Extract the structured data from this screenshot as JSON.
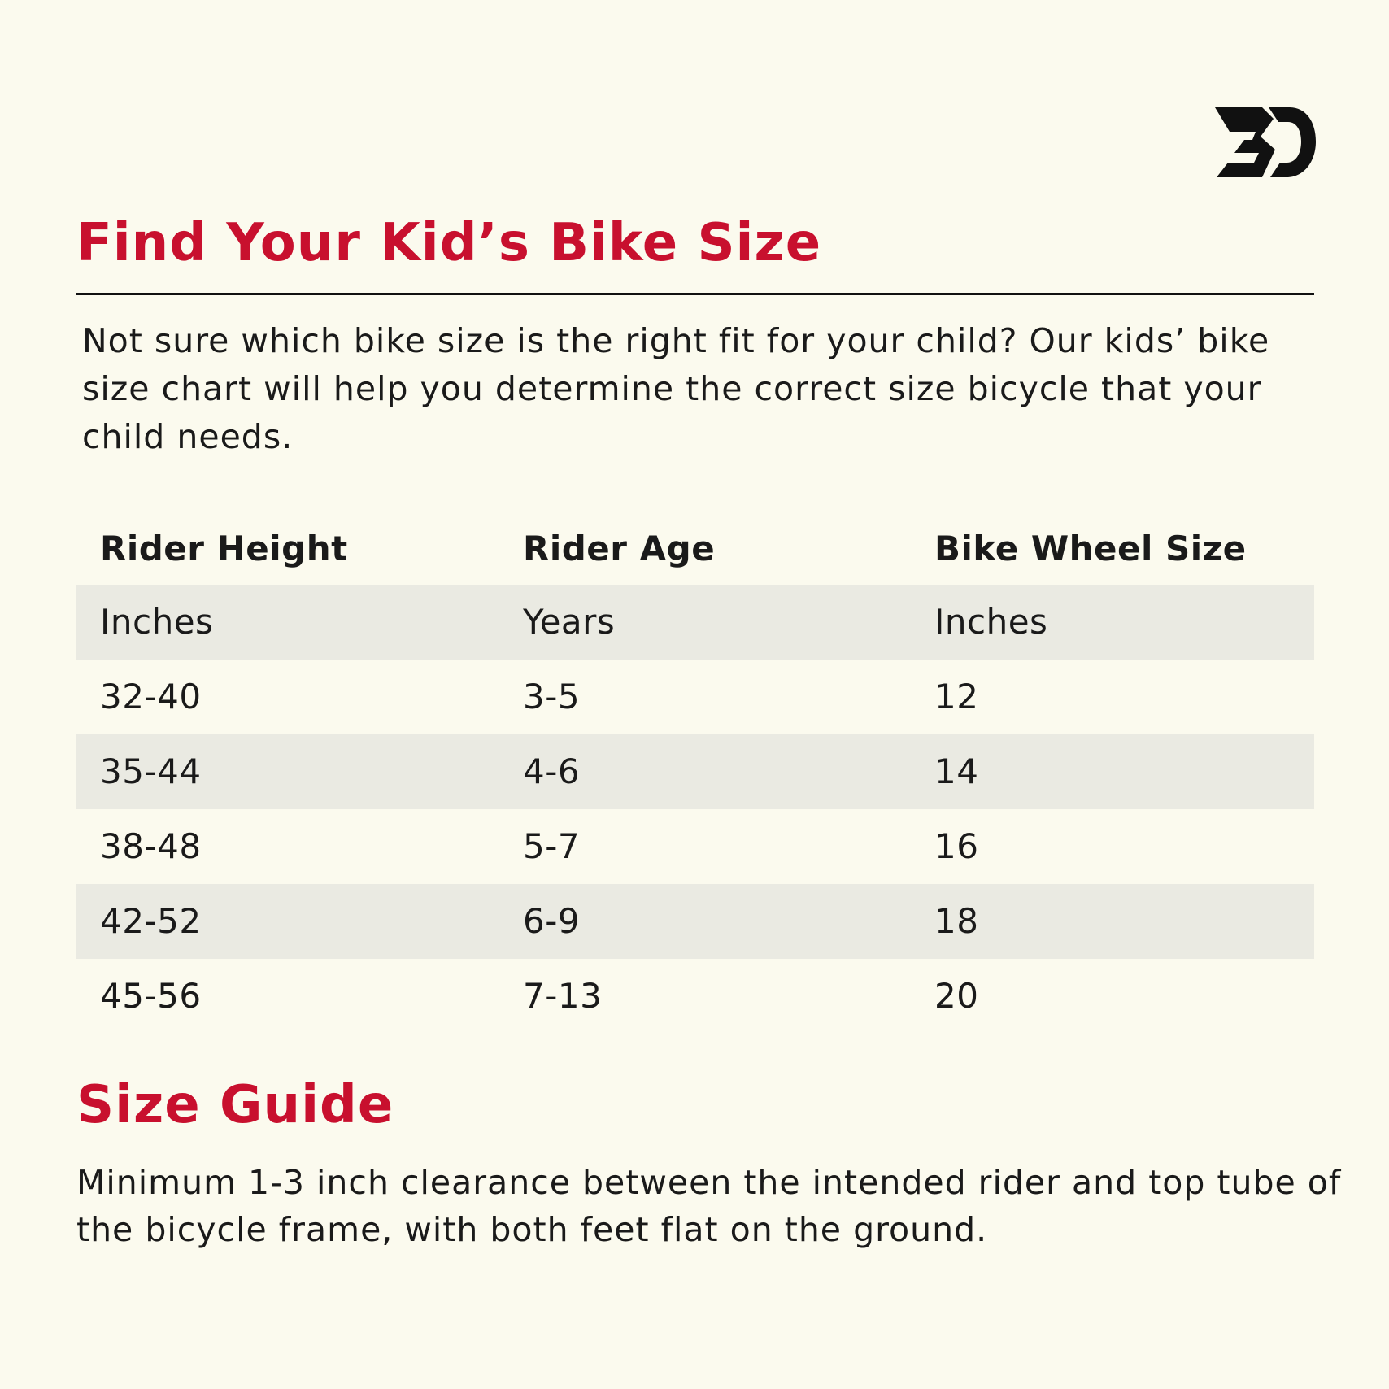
{
  "header": {
    "title": "Find Your Kid’s Bike Size",
    "intro": "Not sure which bike size is the right fit for your child? Our kids’ bike size chart will help you determine the correct size bicycle that your child needs."
  },
  "table": {
    "columns": [
      "Rider Height",
      "Rider Age",
      "Bike Wheel Size"
    ],
    "units": [
      "Inches",
      "Years",
      "Inches"
    ],
    "rows": [
      [
        "32-40",
        "3-5",
        "12"
      ],
      [
        "35-44",
        "4-6",
        "14"
      ],
      [
        "38-48",
        "5-7",
        "16"
      ],
      [
        "42-52",
        "6-9",
        "18"
      ],
      [
        "45-56",
        "7-13",
        "20"
      ]
    ]
  },
  "guide": {
    "title": "Size Guide",
    "text": "Minimum 1-3 inch clearance between the intended rider and top tube of the bicycle frame, with both feet flat on the ground."
  }
}
